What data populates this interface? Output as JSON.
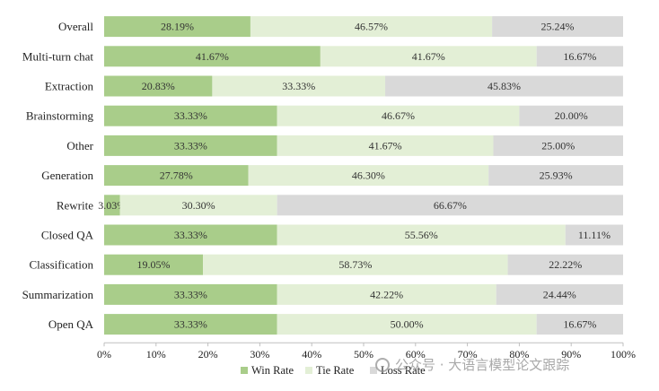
{
  "chart_data": {
    "type": "bar",
    "orientation": "horizontal",
    "stacked": true,
    "normalized": true,
    "categories": [
      "Overall",
      "Multi-turn chat",
      "Extraction",
      "Brainstorming",
      "Other",
      "Generation",
      "Rewrite",
      "Closed QA",
      "Classification",
      "Summarization",
      "Open QA"
    ],
    "series": [
      {
        "name": "Win Rate",
        "color": "#a9cd8a",
        "values": [
          28.19,
          41.67,
          20.83,
          33.33,
          33.33,
          27.78,
          3.03,
          33.33,
          19.05,
          33.33,
          33.33
        ],
        "labels": [
          "28.19%",
          "41.67%",
          "20.83%",
          "33.33%",
          "33.33%",
          "27.78%",
          "3.03%",
          "33.33%",
          "19.05%",
          "33.33%",
          "33.33%"
        ]
      },
      {
        "name": "Tie Rate",
        "color": "#e3efd6",
        "values": [
          46.57,
          41.67,
          33.33,
          46.67,
          41.67,
          46.3,
          30.3,
          55.56,
          58.73,
          42.22,
          50.0
        ],
        "labels": [
          "46.57%",
          "41.67%",
          "33.33%",
          "46.67%",
          "41.67%",
          "46.30%",
          "30.30%",
          "55.56%",
          "58.73%",
          "42.22%",
          "50.00%"
        ]
      },
      {
        "name": "Loss Rate",
        "color": "#d9d9d9",
        "values": [
          25.24,
          16.67,
          45.83,
          20.0,
          25.0,
          25.93,
          66.67,
          11.11,
          22.22,
          24.44,
          16.67
        ],
        "labels": [
          "25.24%",
          "16.67%",
          "45.83%",
          "20.00%",
          "25.00%",
          "25.93%",
          "66.67%",
          "11.11%",
          "22.22%",
          "24.44%",
          "16.67%"
        ]
      }
    ],
    "xlim": [
      0,
      100
    ],
    "xticks": [
      "0%",
      "10%",
      "20%",
      "30%",
      "40%",
      "50%",
      "60%",
      "70%",
      "80%",
      "90%",
      "100%"
    ],
    "legend_position": "bottom",
    "grid": false
  },
  "watermark": "公众号 · 大语言模型论文跟踪"
}
